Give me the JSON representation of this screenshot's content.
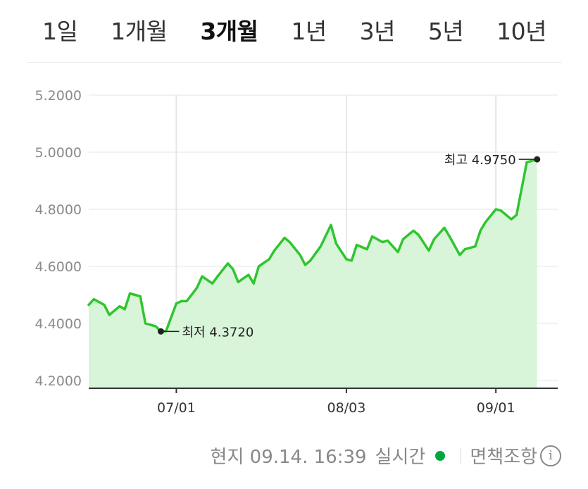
{
  "tabs": [
    {
      "label": "1일",
      "active": false
    },
    {
      "label": "1개월",
      "active": false
    },
    {
      "label": "3개월",
      "active": true
    },
    {
      "label": "1년",
      "active": false
    },
    {
      "label": "3년",
      "active": false
    },
    {
      "label": "5년",
      "active": false
    },
    {
      "label": "10년",
      "active": false
    }
  ],
  "footer": {
    "time_text": "현지 09.14. 16:39",
    "realtime_label": "실시간",
    "disclaimer_label": "면책조항",
    "info_icon": "info-icon",
    "realtime_dot_color": "#00a63e"
  },
  "chart_data": {
    "type": "area",
    "line_color": "#2ec62e",
    "fill_color": "#d9f5d9",
    "ylim": [
      4.2,
      5.2
    ],
    "yticks": [
      "5.2000",
      "5.0000",
      "4.8000",
      "4.6000",
      "4.4000",
      "4.2000"
    ],
    "xlim": [
      "2024-06-14",
      "2024-09-13"
    ],
    "xticks": [
      {
        "label": "07/01",
        "x": "2024-07-01"
      },
      {
        "label": "08/03",
        "x": "2024-08-03"
      },
      {
        "label": "09/01",
        "x": "2024-09-01"
      }
    ],
    "series": [
      {
        "points": [
          [
            "2024-06-14",
            4.465
          ],
          [
            "2024-06-15",
            4.485
          ],
          [
            "2024-06-17",
            4.465
          ],
          [
            "2024-06-18",
            4.43
          ],
          [
            "2024-06-20",
            4.46
          ],
          [
            "2024-06-21",
            4.45
          ],
          [
            "2024-06-22",
            4.505
          ],
          [
            "2024-06-24",
            4.495
          ],
          [
            "2024-06-25",
            4.4
          ],
          [
            "2024-06-27",
            4.39
          ],
          [
            "2024-06-28",
            4.372
          ],
          [
            "2024-06-29",
            4.373
          ],
          [
            "2024-07-01",
            4.47
          ],
          [
            "2024-07-02",
            4.478
          ],
          [
            "2024-07-03",
            4.478
          ],
          [
            "2024-07-05",
            4.525
          ],
          [
            "2024-07-06",
            4.565
          ],
          [
            "2024-07-08",
            4.54
          ],
          [
            "2024-07-09",
            4.565
          ],
          [
            "2024-07-11",
            4.61
          ],
          [
            "2024-07-12",
            4.59
          ],
          [
            "2024-07-13",
            4.545
          ],
          [
            "2024-07-15",
            4.57
          ],
          [
            "2024-07-16",
            4.54
          ],
          [
            "2024-07-17",
            4.6
          ],
          [
            "2024-07-19",
            4.625
          ],
          [
            "2024-07-20",
            4.655
          ],
          [
            "2024-07-22",
            4.7
          ],
          [
            "2024-07-23",
            4.685
          ],
          [
            "2024-07-25",
            4.64
          ],
          [
            "2024-07-26",
            4.605
          ],
          [
            "2024-07-27",
            4.62
          ],
          [
            "2024-07-29",
            4.67
          ],
          [
            "2024-07-31",
            4.745
          ],
          [
            "2024-08-01",
            4.68
          ],
          [
            "2024-08-03",
            4.625
          ],
          [
            "2024-08-04",
            4.62
          ],
          [
            "2024-08-05",
            4.675
          ],
          [
            "2024-08-07",
            4.66
          ],
          [
            "2024-08-08",
            4.705
          ],
          [
            "2024-08-10",
            4.685
          ],
          [
            "2024-08-11",
            4.69
          ],
          [
            "2024-08-13",
            4.65
          ],
          [
            "2024-08-14",
            4.695
          ],
          [
            "2024-08-16",
            4.725
          ],
          [
            "2024-08-17",
            4.71
          ],
          [
            "2024-08-19",
            4.655
          ],
          [
            "2024-08-20",
            4.695
          ],
          [
            "2024-08-22",
            4.735
          ],
          [
            "2024-08-23",
            4.705
          ],
          [
            "2024-08-25",
            4.64
          ],
          [
            "2024-08-26",
            4.66
          ],
          [
            "2024-08-28",
            4.67
          ],
          [
            "2024-08-29",
            4.725
          ],
          [
            "2024-08-30",
            4.755
          ],
          [
            "2024-09-01",
            4.8
          ],
          [
            "2024-09-02",
            4.795
          ],
          [
            "2024-09-04",
            4.765
          ],
          [
            "2024-09-05",
            4.78
          ],
          [
            "2024-09-07",
            4.965
          ],
          [
            "2024-09-08",
            4.97
          ],
          [
            "2024-09-09",
            4.975
          ]
        ]
      }
    ],
    "annotations": [
      {
        "type": "min",
        "label": "최저 4.3720",
        "x": "2024-06-28",
        "y": 4.372
      },
      {
        "type": "max",
        "label": "최고 4.9750",
        "x": "2024-09-09",
        "y": 4.975
      }
    ]
  }
}
